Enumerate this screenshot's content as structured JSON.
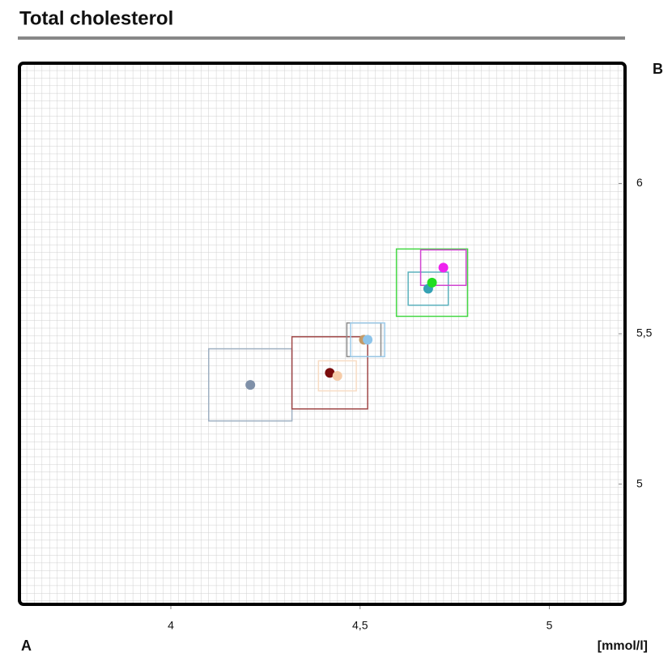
{
  "chart_data": {
    "type": "scatter",
    "title": "Total cholesterol",
    "corner_bottom_left": "A",
    "corner_top_right": "B",
    "unit_label": "[mmol/l]",
    "xlim": [
      3.6,
      5.2
    ],
    "ylim": [
      4.6,
      6.4
    ],
    "xticks": [
      4,
      {
        "value": 4.5,
        "label": "4,5"
      },
      5
    ],
    "yticks": [
      5,
      {
        "value": 5.5,
        "label": "5,5"
      },
      6
    ],
    "points": [
      {
        "x": 4.21,
        "y": 5.33,
        "xerr": 0.11,
        "yerr": 0.12,
        "color": "#7f90a8",
        "box_color": "#9fb0c2"
      },
      {
        "x": 4.42,
        "y": 5.37,
        "xerr": 0.1,
        "yerr": 0.12,
        "color": "#7a0c0c",
        "box_color": "#a04848"
      },
      {
        "x": 4.44,
        "y": 5.36,
        "xerr": 0.05,
        "yerr": 0.05,
        "color": "#f6cca8",
        "box_color": "#f8dcc4"
      },
      {
        "x": 4.51,
        "y": 5.48,
        "xerr": 0.045,
        "yerr": 0.056,
        "color": "#c49a66",
        "box_color": "#8a8a8a"
      },
      {
        "x": 4.52,
        "y": 5.48,
        "xerr": 0.045,
        "yerr": 0.056,
        "color": "#8ec4ea",
        "box_color": "#9ccbea"
      },
      {
        "x": 4.68,
        "y": 5.65,
        "xerr": 0.053,
        "yerr": 0.055,
        "color": "#35a2b4",
        "box_color": "#5ab0bc"
      },
      {
        "x": 4.69,
        "y": 5.67,
        "xerr": 0.094,
        "yerr": 0.112,
        "color": "#22dd22",
        "box_color": "#44d844"
      },
      {
        "x": 4.72,
        "y": 5.72,
        "xerr": 0.06,
        "yerr": 0.059,
        "color": "#ee22ee",
        "box_color": "#d044d0"
      }
    ]
  }
}
